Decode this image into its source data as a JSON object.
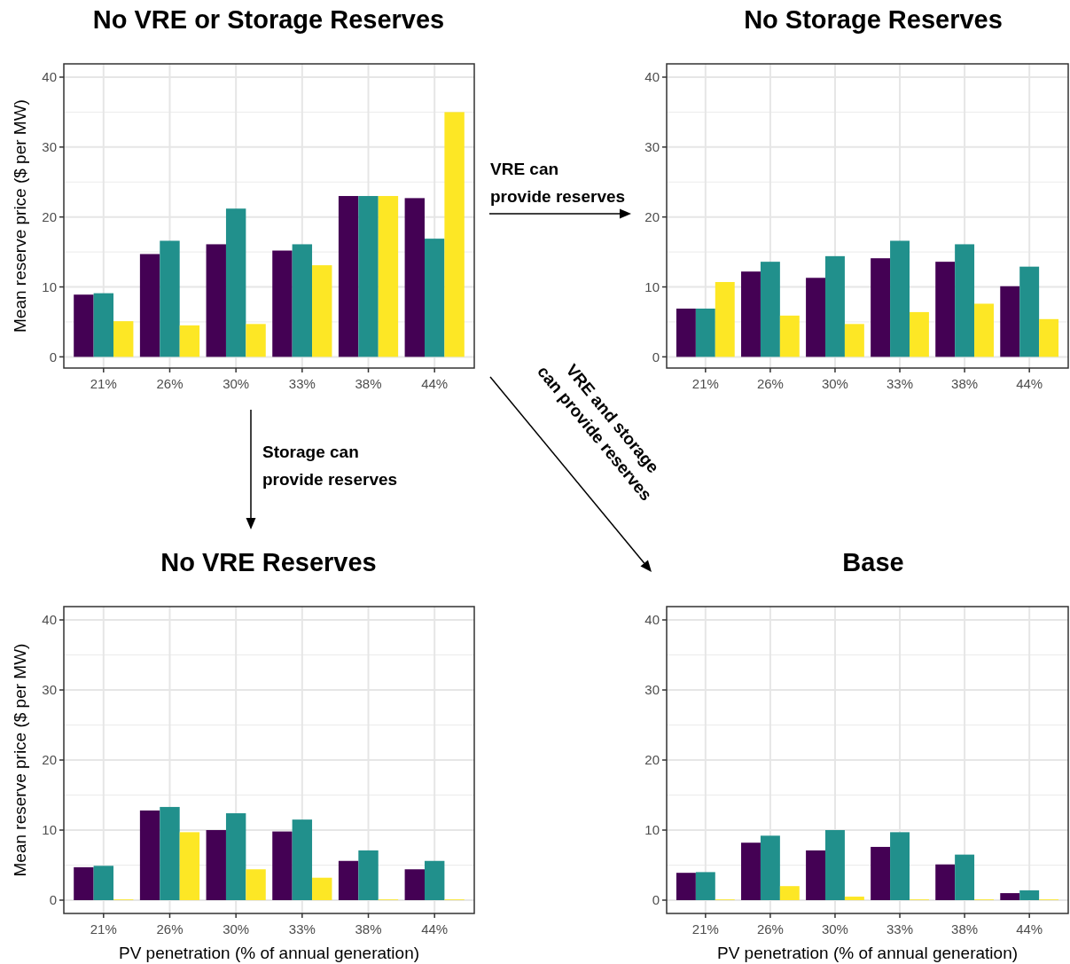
{
  "chart_data": [
    {
      "type": "bar",
      "title": "No VRE or Storage Reserves",
      "ylabel": "Mean reserve price ($ per MW)",
      "categories": [
        "21%",
        "26%",
        "30%",
        "33%",
        "38%",
        "44%"
      ],
      "series": [
        {
          "color": "#440154",
          "values": [
            8.9,
            14.7,
            16.1,
            15.2,
            23.0,
            22.7
          ]
        },
        {
          "color": "#21908c",
          "values": [
            9.1,
            16.6,
            21.2,
            16.1,
            23.0,
            16.9
          ]
        },
        {
          "color": "#fde725",
          "values": [
            5.1,
            4.5,
            4.7,
            13.1,
            23.0,
            35.0
          ]
        }
      ],
      "ylim": [
        -1.6,
        41.9
      ],
      "yticks": [
        0,
        10,
        20,
        30,
        40
      ],
      "grid": true,
      "annotations": [
        "VRE can\nprovide reserves",
        "Storage can\nprovide reserves",
        "VRE and storage\ncan provide reserves"
      ]
    },
    {
      "type": "bar",
      "title": "No Storage Reserves",
      "categories": [
        "21%",
        "26%",
        "30%",
        "33%",
        "38%",
        "44%"
      ],
      "series": [
        {
          "color": "#440154",
          "values": [
            6.9,
            12.2,
            11.3,
            14.1,
            13.6,
            10.1
          ]
        },
        {
          "color": "#21908c",
          "values": [
            6.9,
            13.6,
            14.4,
            16.6,
            16.1,
            12.9
          ]
        },
        {
          "color": "#fde725",
          "values": [
            10.7,
            5.9,
            4.7,
            6.4,
            7.6,
            5.4
          ]
        }
      ],
      "ylim": [
        -1.6,
        41.9
      ],
      "yticks": [
        0,
        10,
        20,
        30,
        40
      ],
      "grid": true
    },
    {
      "type": "bar",
      "title": "No VRE Reserves",
      "ylabel": "Mean reserve price ($ per MW)",
      "xlabel": "PV penetration (% of annual generation)",
      "categories": [
        "21%",
        "26%",
        "30%",
        "33%",
        "38%",
        "44%"
      ],
      "series": [
        {
          "color": "#440154",
          "values": [
            4.7,
            12.8,
            10.0,
            9.8,
            5.6,
            4.4
          ]
        },
        {
          "color": "#21908c",
          "values": [
            4.9,
            13.3,
            12.4,
            11.5,
            7.1,
            5.6
          ]
        },
        {
          "color": "#fde725",
          "values": [
            0.1,
            9.7,
            4.4,
            3.2,
            0.1,
            0.1
          ]
        }
      ],
      "ylim": [
        -1.9,
        41.9
      ],
      "yticks": [
        0,
        10,
        20,
        30,
        40
      ],
      "grid": true
    },
    {
      "type": "bar",
      "title": "Base",
      "xlabel": "PV penetration (% of annual generation)",
      "categories": [
        "21%",
        "26%",
        "30%",
        "33%",
        "38%",
        "44%"
      ],
      "series": [
        {
          "color": "#440154",
          "values": [
            3.9,
            8.2,
            7.1,
            7.6,
            5.1,
            1.0
          ]
        },
        {
          "color": "#21908c",
          "values": [
            4.0,
            9.2,
            10.0,
            9.7,
            6.5,
            1.4
          ]
        },
        {
          "color": "#fde725",
          "values": [
            0.1,
            2.0,
            0.5,
            0.1,
            0.1,
            0.1
          ]
        }
      ],
      "ylim": [
        -1.9,
        41.9
      ],
      "yticks": [
        0,
        10,
        20,
        30,
        40
      ],
      "grid": true
    }
  ]
}
